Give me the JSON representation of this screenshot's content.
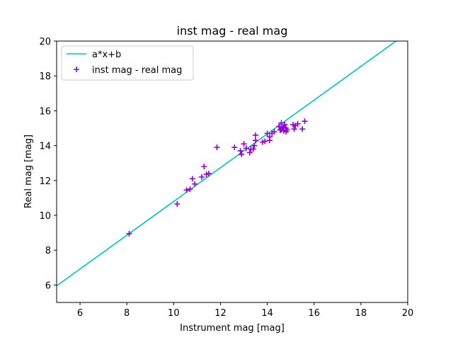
{
  "chart_data": {
    "type": "scatter",
    "title": "inst mag - real mag",
    "xlabel": "Instrument mag [mag]",
    "ylabel": "Real mag [mag]",
    "xlim": [
      5,
      20
    ],
    "ylim": [
      5,
      20
    ],
    "xticks": [
      6,
      8,
      10,
      12,
      14,
      16,
      18,
      20
    ],
    "yticks": [
      6,
      8,
      10,
      12,
      14,
      16,
      18,
      20
    ],
    "grid": false,
    "legend_position": "upper-left",
    "series": [
      {
        "name": "a*x+b",
        "kind": "line",
        "color": "#00bfbf",
        "x": [
          5.0,
          19.5
        ],
        "y": [
          5.95,
          20.0
        ]
      },
      {
        "name": "inst mag - real mag",
        "kind": "scatter",
        "marker": "plus",
        "color": "#9400d3",
        "x": [
          8.1,
          10.15,
          10.55,
          10.7,
          10.8,
          10.9,
          11.2,
          11.3,
          11.4,
          11.5,
          11.85,
          12.6,
          12.85,
          12.9,
          13.0,
          13.1,
          13.25,
          13.3,
          13.4,
          13.45,
          13.5,
          13.5,
          13.8,
          13.9,
          14.0,
          14.1,
          14.1,
          14.2,
          14.3,
          14.5,
          14.55,
          14.6,
          14.6,
          14.65,
          14.7,
          14.7,
          14.75,
          14.8,
          14.8,
          14.85,
          15.1,
          15.15,
          15.2,
          15.3,
          15.5,
          15.6
        ],
        "y": [
          8.95,
          10.65,
          11.45,
          11.5,
          12.1,
          11.8,
          12.2,
          12.8,
          12.35,
          12.4,
          13.9,
          13.9,
          13.7,
          13.5,
          14.1,
          13.85,
          13.6,
          13.8,
          13.8,
          14.0,
          14.3,
          14.6,
          14.2,
          14.25,
          14.7,
          14.3,
          14.5,
          14.7,
          14.8,
          15.1,
          14.9,
          15.3,
          14.9,
          15.0,
          14.85,
          15.05,
          15.2,
          14.8,
          15.0,
          14.9,
          15.2,
          14.95,
          15.15,
          15.25,
          14.95,
          15.4
        ]
      }
    ]
  }
}
